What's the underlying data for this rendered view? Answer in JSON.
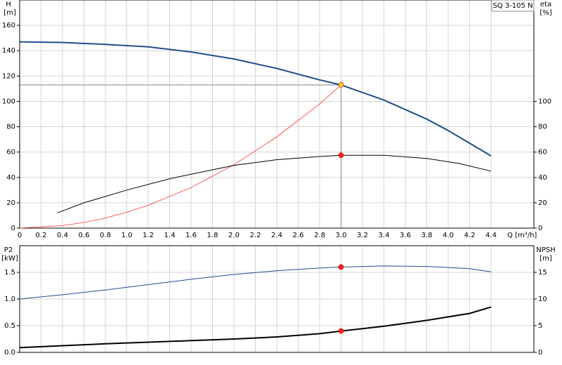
{
  "chart_data": [
    {
      "type": "line",
      "title": "SQ 3-105 N",
      "y_label": "H",
      "y_unit": "[m]",
      "y2_label": "eta",
      "y2_unit": "[%]",
      "x_label": "Q [m³/h]",
      "xlim": [
        0,
        4.8
      ],
      "xticks": [
        0,
        0.2,
        0.4,
        0.6,
        0.8,
        {
          "value": 1,
          "label": "1.0"
        },
        1.2,
        1.4,
        1.6,
        1.8,
        {
          "value": 2,
          "label": "2.0"
        },
        2.2,
        2.4,
        2.6,
        2.8,
        {
          "value": 3,
          "label": "3.0"
        },
        3.2,
        3.4,
        3.6,
        3.8,
        {
          "value": 4,
          "label": "4.0"
        },
        4.2,
        4.4
      ],
      "ylim": [
        0,
        180
      ],
      "yticks": [
        0,
        20,
        40,
        60,
        80,
        100,
        120,
        140,
        160
      ],
      "y2lim": [
        0,
        180
      ],
      "y2ticks": [
        0,
        20,
        40,
        60,
        80,
        100
      ],
      "grid": true,
      "crosshair": true,
      "series": [
        {
          "color": "#1f4e8c",
          "line_width": 2,
          "x": [
            0,
            0.4,
            0.8,
            1.2,
            1.6,
            2.0,
            2.4,
            2.8,
            3.0,
            3.4,
            3.8,
            4.0,
            4.2,
            4.4
          ],
          "values": [
            147,
            146.5,
            145,
            143,
            139,
            133.5,
            126,
            117,
            113,
            101,
            86,
            77,
            67,
            57
          ]
        },
        {
          "color": "#ff3030",
          "line_width": 0.8,
          "x": [
            0,
            0.4,
            0.6,
            0.8,
            1.0,
            1.2,
            1.6,
            2.0,
            2.4,
            2.8,
            3.0
          ],
          "values": [
            0,
            2,
            4.5,
            8,
            12.5,
            18,
            32,
            50,
            72,
            98,
            113
          ]
        },
        {
          "color": "#000000",
          "line_width": 1,
          "axis": "y2",
          "x": [
            0.35,
            0.6,
            1.0,
            1.4,
            1.8,
            2.0,
            2.4,
            2.8,
            3.0,
            3.4,
            3.8,
            4.1,
            4.4
          ],
          "values": [
            12,
            20,
            30,
            39,
            46,
            49.5,
            54,
            56.5,
            57.5,
            57.5,
            55,
            51,
            45
          ]
        }
      ],
      "markers": [
        {
          "x": 3.0,
          "y": 113,
          "color": "#ffd21f"
        },
        {
          "x": 3.0,
          "y": 57.5,
          "color": "#ff2020",
          "axis": "y2"
        }
      ]
    },
    {
      "type": "line",
      "y_label": "P2",
      "y_unit": "[kW]",
      "y2_label": "NPSH",
      "y2_unit": "[m]",
      "xlim": [
        0,
        4.8
      ],
      "ylim": [
        0,
        2
      ],
      "yticks": [
        {
          "value": 0,
          "label": "0.0"
        },
        0.5,
        {
          "value": 1,
          "label": "1.0"
        },
        1.5
      ],
      "y2lim": [
        0,
        20
      ],
      "y2ticks": [
        0,
        5,
        10,
        15
      ],
      "grid": true,
      "series": [
        {
          "color": "#1f4e8c",
          "line_width": 1,
          "x": [
            0,
            0.4,
            0.8,
            1.2,
            1.6,
            2.0,
            2.4,
            2.8,
            3.0,
            3.4,
            3.8,
            4.2,
            4.4
          ],
          "values": [
            1.0,
            1.08,
            1.17,
            1.27,
            1.37,
            1.46,
            1.53,
            1.58,
            1.6,
            1.62,
            1.61,
            1.57,
            1.51
          ]
        },
        {
          "color": "#000000",
          "line_width": 2,
          "axis": "y2",
          "x": [
            0,
            0.8,
            1.6,
            2.0,
            2.4,
            2.8,
            3.0,
            3.4,
            3.8,
            4.2,
            4.4
          ],
          "values": [
            0.9,
            1.6,
            2.2,
            2.5,
            2.9,
            3.5,
            4.0,
            4.9,
            6.0,
            7.3,
            8.5
          ]
        }
      ],
      "markers": [
        {
          "x": 3.0,
          "y": 1.6,
          "color": "#ff2020"
        },
        {
          "x": 3.0,
          "y": 4.0,
          "color": "#ff2020",
          "axis": "y2"
        }
      ]
    }
  ]
}
